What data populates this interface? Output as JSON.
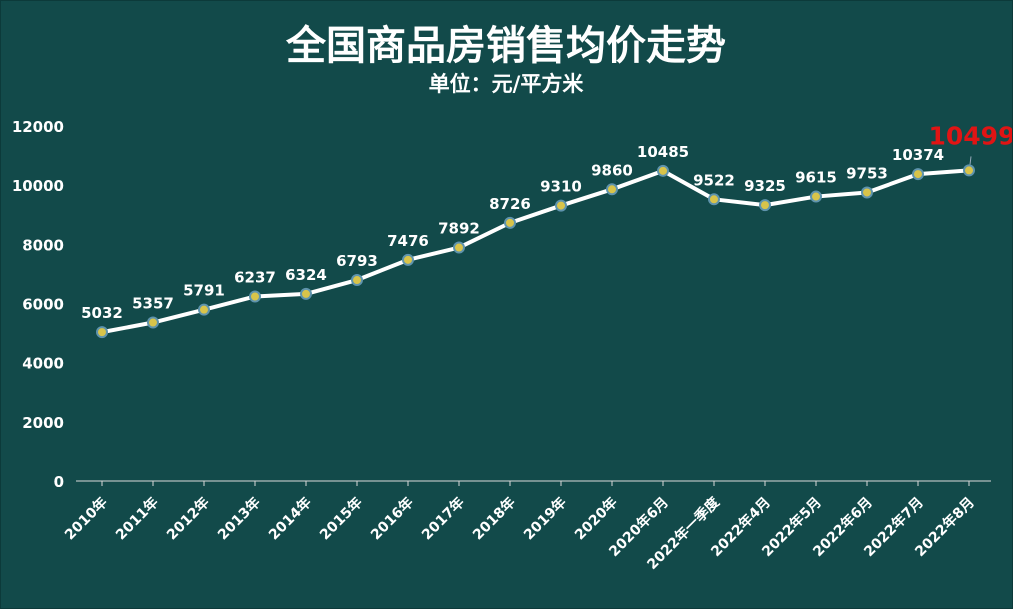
{
  "chart_data": {
    "type": "line",
    "title": "全国商品房销售均价走势",
    "subtitle": "单位：元/平方米",
    "categories": [
      "2010年",
      "2011年",
      "2012年",
      "2013年",
      "2014年",
      "2015年",
      "2016年",
      "2017年",
      "2018年",
      "2019年",
      "2020年",
      "2020年6月",
      "2022年一季度",
      "2022年4月",
      "2022年5月",
      "2022年6月",
      "2022年7月",
      "2022年8月"
    ],
    "values": [
      5032,
      5357,
      5791,
      6237,
      6324,
      6793,
      7476,
      7892,
      8726,
      9310,
      9860,
      10485,
      9522,
      9325,
      9615,
      9753,
      10374,
      10499
    ],
    "labels": [
      "5032",
      "5357",
      "5791",
      "6237",
      "6324",
      "6793",
      "7476",
      "7892",
      "8726",
      "9310",
      "9860",
      "10485",
      "9522",
      "9325",
      "9615",
      "9753",
      "10374",
      "10499"
    ],
    "highlight_index": 17,
    "ylim": [
      0,
      12000
    ],
    "yticks": [
      "0",
      "2000",
      "4000",
      "6000",
      "8000",
      "10000",
      "12000"
    ],
    "ytick_values": [
      0,
      2000,
      4000,
      6000,
      8000,
      10000,
      12000
    ],
    "xlabel": "",
    "ylabel": "",
    "grid": false,
    "colors": {
      "background": "#124a4a",
      "line": "#ffffff",
      "marker_fill": "#d8c44a",
      "marker_edge": "#5f94ad",
      "highlight_label": "#e01414",
      "text": "#ffffff"
    }
  }
}
